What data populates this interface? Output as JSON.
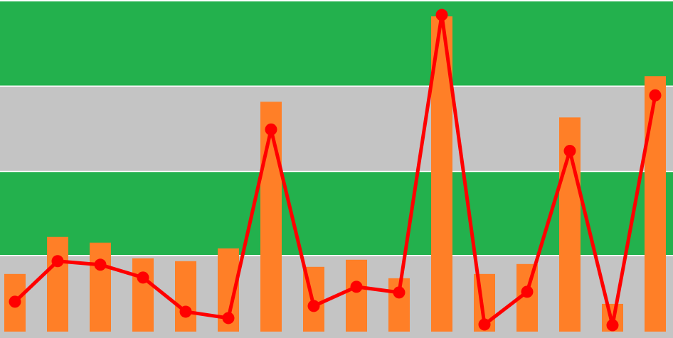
{
  "chart_data": {
    "type": "bar",
    "categories": [
      "",
      "",
      "",
      "",
      "",
      "",
      "",
      "",
      "",
      "",
      "",
      "",
      "",
      "",
      "",
      ""
    ],
    "series": [
      {
        "type": "bar",
        "values": [
          81,
          133,
          125,
          103,
          99,
          117,
          323,
          91,
          101,
          75,
          443,
          81,
          95,
          301,
          39,
          359
        ]
      },
      {
        "type": "line",
        "values": [
          42,
          99,
          94,
          76,
          28,
          19,
          284,
          36,
          63,
          55,
          445,
          10,
          56,
          254,
          9,
          332
        ]
      }
    ],
    "ylim": [
      0,
      464
    ],
    "bands": [
      {
        "from": 0,
        "to": 107,
        "color": "#c4c4c4"
      },
      {
        "from": 107,
        "to": 225,
        "color": "#23b14d"
      },
      {
        "from": 225,
        "to": 345,
        "color": "#c4c4c4"
      },
      {
        "from": 345,
        "to": 464,
        "color": "#23b14d"
      }
    ],
    "colors": {
      "bar": "#ff7f27",
      "line": "#ff0000",
      "marker": "#ff0000",
      "band_border": "#ffffff"
    },
    "grid": false,
    "legend": "none",
    "title": "",
    "xlabel": "",
    "ylabel": ""
  }
}
